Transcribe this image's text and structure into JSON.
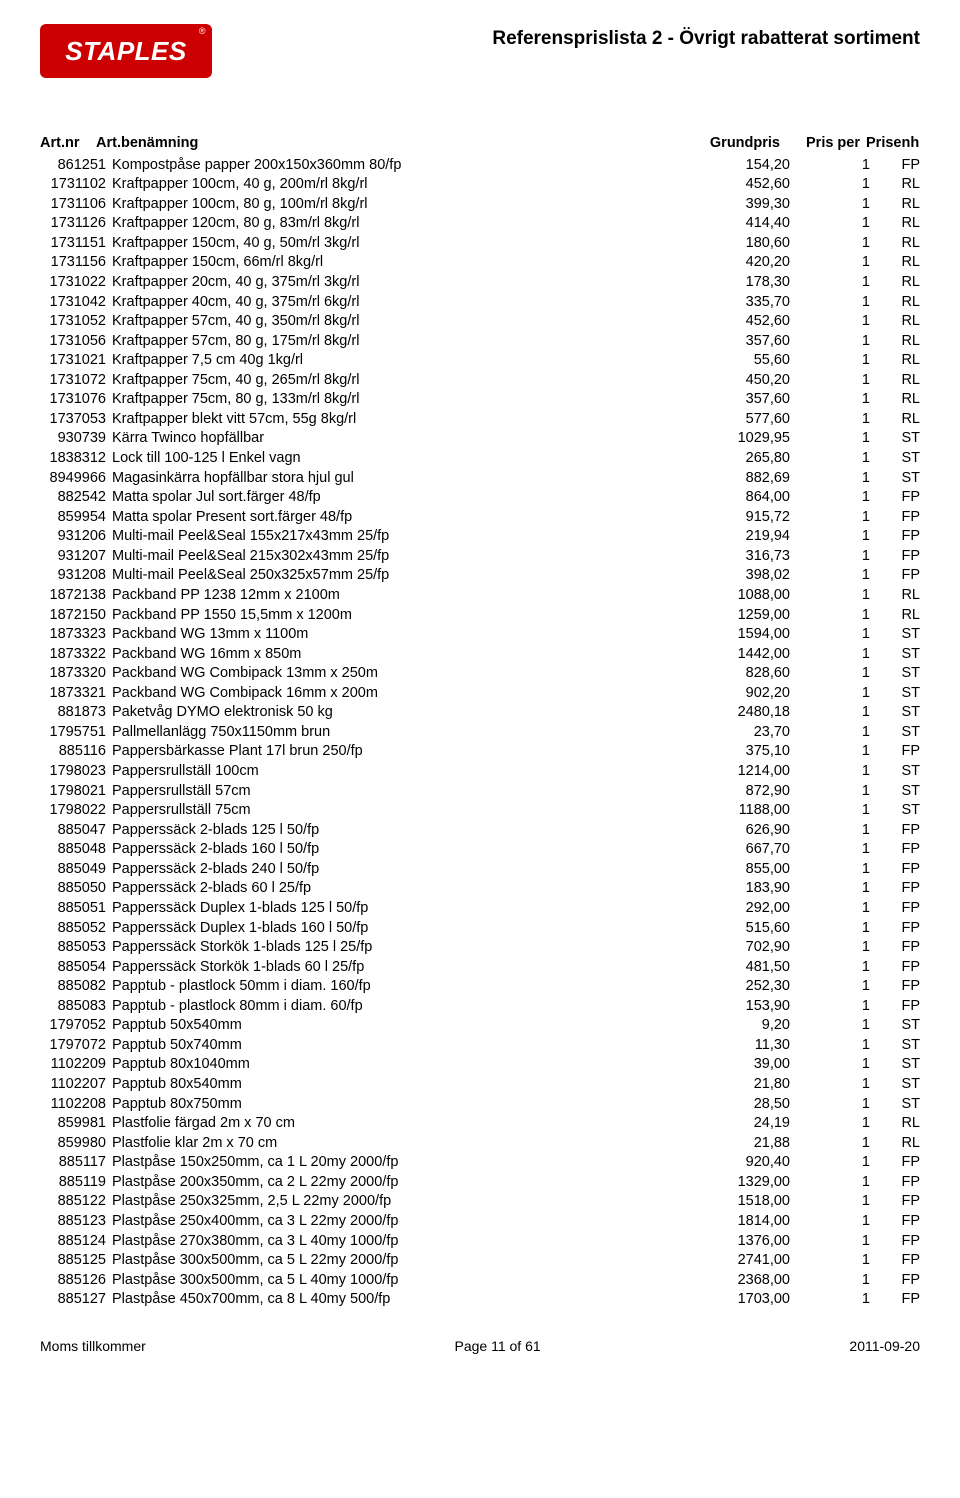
{
  "page_title": "Referensprislista 2 - Övrigt rabatterat sortiment",
  "logo_text": "STAPLES",
  "columns": {
    "art": "Art.nr",
    "name": "Art.benämning",
    "price": "Grundpris",
    "per": "Pris per",
    "unit": "Prisenh"
  },
  "rows": [
    {
      "art": "861251",
      "name": "Kompostpåse papper 200x150x360mm 80/fp",
      "price": "154,20",
      "per": "1",
      "unit": "FP"
    },
    {
      "art": "1731102",
      "name": "Kraftpapper 100cm, 40 g, 200m/rl 8kg/rl",
      "price": "452,60",
      "per": "1",
      "unit": "RL"
    },
    {
      "art": "1731106",
      "name": "Kraftpapper 100cm, 80 g, 100m/rl 8kg/rl",
      "price": "399,30",
      "per": "1",
      "unit": "RL"
    },
    {
      "art": "1731126",
      "name": "Kraftpapper 120cm, 80 g, 83m/rl 8kg/rl",
      "price": "414,40",
      "per": "1",
      "unit": "RL"
    },
    {
      "art": "1731151",
      "name": "Kraftpapper 150cm, 40 g, 50m/rl 3kg/rl",
      "price": "180,60",
      "per": "1",
      "unit": "RL"
    },
    {
      "art": "1731156",
      "name": "Kraftpapper 150cm, 66m/rl 8kg/rl",
      "price": "420,20",
      "per": "1",
      "unit": "RL"
    },
    {
      "art": "1731022",
      "name": "Kraftpapper 20cm, 40 g, 375m/rl 3kg/rl",
      "price": "178,30",
      "per": "1",
      "unit": "RL"
    },
    {
      "art": "1731042",
      "name": "Kraftpapper 40cm, 40 g, 375m/rl 6kg/rl",
      "price": "335,70",
      "per": "1",
      "unit": "RL"
    },
    {
      "art": "1731052",
      "name": "Kraftpapper 57cm, 40 g, 350m/rl 8kg/rl",
      "price": "452,60",
      "per": "1",
      "unit": "RL"
    },
    {
      "art": "1731056",
      "name": "Kraftpapper 57cm, 80 g, 175m/rl 8kg/rl",
      "price": "357,60",
      "per": "1",
      "unit": "RL"
    },
    {
      "art": "1731021",
      "name": "Kraftpapper 7,5 cm 40g 1kg/rl",
      "price": "55,60",
      "per": "1",
      "unit": "RL"
    },
    {
      "art": "1731072",
      "name": "Kraftpapper 75cm, 40 g, 265m/rl 8kg/rl",
      "price": "450,20",
      "per": "1",
      "unit": "RL"
    },
    {
      "art": "1731076",
      "name": "Kraftpapper 75cm, 80 g, 133m/rl 8kg/rl",
      "price": "357,60",
      "per": "1",
      "unit": "RL"
    },
    {
      "art": "1737053",
      "name": "Kraftpapper blekt vitt 57cm, 55g 8kg/rl",
      "price": "577,60",
      "per": "1",
      "unit": "RL"
    },
    {
      "art": "930739",
      "name": "Kärra Twinco hopfällbar",
      "price": "1029,95",
      "per": "1",
      "unit": "ST"
    },
    {
      "art": "1838312",
      "name": "Lock till 100-125 l Enkel vagn",
      "price": "265,80",
      "per": "1",
      "unit": "ST"
    },
    {
      "art": "8949966",
      "name": "Magasinkärra hopfällbar stora hjul gul",
      "price": "882,69",
      "per": "1",
      "unit": "ST"
    },
    {
      "art": "882542",
      "name": "Matta spolar Jul sort.färger 48/fp",
      "price": "864,00",
      "per": "1",
      "unit": "FP"
    },
    {
      "art": "859954",
      "name": "Matta spolar Present sort.färger 48/fp",
      "price": "915,72",
      "per": "1",
      "unit": "FP"
    },
    {
      "art": "931206",
      "name": "Multi-mail Peel&Seal 155x217x43mm 25/fp",
      "price": "219,94",
      "per": "1",
      "unit": "FP"
    },
    {
      "art": "931207",
      "name": "Multi-mail Peel&Seal 215x302x43mm 25/fp",
      "price": "316,73",
      "per": "1",
      "unit": "FP"
    },
    {
      "art": "931208",
      "name": "Multi-mail Peel&Seal 250x325x57mm 25/fp",
      "price": "398,02",
      "per": "1",
      "unit": "FP"
    },
    {
      "art": "1872138",
      "name": "Packband PP 1238 12mm x 2100m",
      "price": "1088,00",
      "per": "1",
      "unit": "RL"
    },
    {
      "art": "1872150",
      "name": "Packband PP 1550 15,5mm x 1200m",
      "price": "1259,00",
      "per": "1",
      "unit": "RL"
    },
    {
      "art": "1873323",
      "name": "Packband WG 13mm x 1100m",
      "price": "1594,00",
      "per": "1",
      "unit": "ST"
    },
    {
      "art": "1873322",
      "name": "Packband WG 16mm x 850m",
      "price": "1442,00",
      "per": "1",
      "unit": "ST"
    },
    {
      "art": "1873320",
      "name": "Packband WG Combipack 13mm x 250m",
      "price": "828,60",
      "per": "1",
      "unit": "ST"
    },
    {
      "art": "1873321",
      "name": "Packband WG Combipack 16mm x 200m",
      "price": "902,20",
      "per": "1",
      "unit": "ST"
    },
    {
      "art": "881873",
      "name": "Paketvåg DYMO elektronisk 50 kg",
      "price": "2480,18",
      "per": "1",
      "unit": "ST"
    },
    {
      "art": "1795751",
      "name": "Pallmellanlägg 750x1150mm brun",
      "price": "23,70",
      "per": "1",
      "unit": "ST"
    },
    {
      "art": "885116",
      "name": "Pappersbärkasse Plant 17l brun 250/fp",
      "price": "375,10",
      "per": "1",
      "unit": "FP"
    },
    {
      "art": "1798023",
      "name": "Pappersrullställ 100cm",
      "price": "1214,00",
      "per": "1",
      "unit": "ST"
    },
    {
      "art": "1798021",
      "name": "Pappersrullställ 57cm",
      "price": "872,90",
      "per": "1",
      "unit": "ST"
    },
    {
      "art": "1798022",
      "name": "Pappersrullställ 75cm",
      "price": "1188,00",
      "per": "1",
      "unit": "ST"
    },
    {
      "art": "885047",
      "name": "Papperssäck 2-blads 125 l 50/fp",
      "price": "626,90",
      "per": "1",
      "unit": "FP"
    },
    {
      "art": "885048",
      "name": "Papperssäck 2-blads 160 l 50/fp",
      "price": "667,70",
      "per": "1",
      "unit": "FP"
    },
    {
      "art": "885049",
      "name": "Papperssäck 2-blads 240 l 50/fp",
      "price": "855,00",
      "per": "1",
      "unit": "FP"
    },
    {
      "art": "885050",
      "name": "Papperssäck 2-blads 60 l 25/fp",
      "price": "183,90",
      "per": "1",
      "unit": "FP"
    },
    {
      "art": "885051",
      "name": "Papperssäck Duplex 1-blads 125 l 50/fp",
      "price": "292,00",
      "per": "1",
      "unit": "FP"
    },
    {
      "art": "885052",
      "name": "Papperssäck Duplex 1-blads 160 l 50/fp",
      "price": "515,60",
      "per": "1",
      "unit": "FP"
    },
    {
      "art": "885053",
      "name": "Papperssäck Storkök 1-blads 125 l 25/fp",
      "price": "702,90",
      "per": "1",
      "unit": "FP"
    },
    {
      "art": "885054",
      "name": "Papperssäck Storkök 1-blads 60 l 25/fp",
      "price": "481,50",
      "per": "1",
      "unit": "FP"
    },
    {
      "art": "885082",
      "name": "Papptub - plastlock 50mm i diam. 160/fp",
      "price": "252,30",
      "per": "1",
      "unit": "FP"
    },
    {
      "art": "885083",
      "name": "Papptub - plastlock 80mm i diam. 60/fp",
      "price": "153,90",
      "per": "1",
      "unit": "FP"
    },
    {
      "art": "1797052",
      "name": "Papptub 50x540mm",
      "price": "9,20",
      "per": "1",
      "unit": "ST"
    },
    {
      "art": "1797072",
      "name": "Papptub 50x740mm",
      "price": "11,30",
      "per": "1",
      "unit": "ST"
    },
    {
      "art": "1102209",
      "name": "Papptub 80x1040mm",
      "price": "39,00",
      "per": "1",
      "unit": "ST"
    },
    {
      "art": "1102207",
      "name": "Papptub 80x540mm",
      "price": "21,80",
      "per": "1",
      "unit": "ST"
    },
    {
      "art": "1102208",
      "name": "Papptub 80x750mm",
      "price": "28,50",
      "per": "1",
      "unit": "ST"
    },
    {
      "art": "859981",
      "name": "Plastfolie färgad 2m x 70 cm",
      "price": "24,19",
      "per": "1",
      "unit": "RL"
    },
    {
      "art": "859980",
      "name": "Plastfolie klar 2m x 70 cm",
      "price": "21,88",
      "per": "1",
      "unit": "RL"
    },
    {
      "art": "885117",
      "name": "Plastpåse 150x250mm, ca 1 L 20my 2000/fp",
      "price": "920,40",
      "per": "1",
      "unit": "FP"
    },
    {
      "art": "885119",
      "name": "Plastpåse 200x350mm, ca 2 L 22my 2000/fp",
      "price": "1329,00",
      "per": "1",
      "unit": "FP"
    },
    {
      "art": "885122",
      "name": "Plastpåse 250x325mm, 2,5 L 22my 2000/fp",
      "price": "1518,00",
      "per": "1",
      "unit": "FP"
    },
    {
      "art": "885123",
      "name": "Plastpåse 250x400mm, ca 3 L 22my 2000/fp",
      "price": "1814,00",
      "per": "1",
      "unit": "FP"
    },
    {
      "art": "885124",
      "name": "Plastpåse 270x380mm, ca 3 L 40my 1000/fp",
      "price": "1376,00",
      "per": "1",
      "unit": "FP"
    },
    {
      "art": "885125",
      "name": "Plastpåse 300x500mm, ca 5 L 22my 2000/fp",
      "price": "2741,00",
      "per": "1",
      "unit": "FP"
    },
    {
      "art": "885126",
      "name": "Plastpåse 300x500mm, ca 5 L 40my 1000/fp",
      "price": "2368,00",
      "per": "1",
      "unit": "FP"
    },
    {
      "art": "885127",
      "name": "Plastpåse 450x700mm, ca 8 L 40my 500/fp",
      "price": "1703,00",
      "per": "1",
      "unit": "FP"
    }
  ],
  "footer": {
    "left": "Moms tillkommer",
    "center": "Page 11 of 61",
    "right": "2011-09-20"
  }
}
